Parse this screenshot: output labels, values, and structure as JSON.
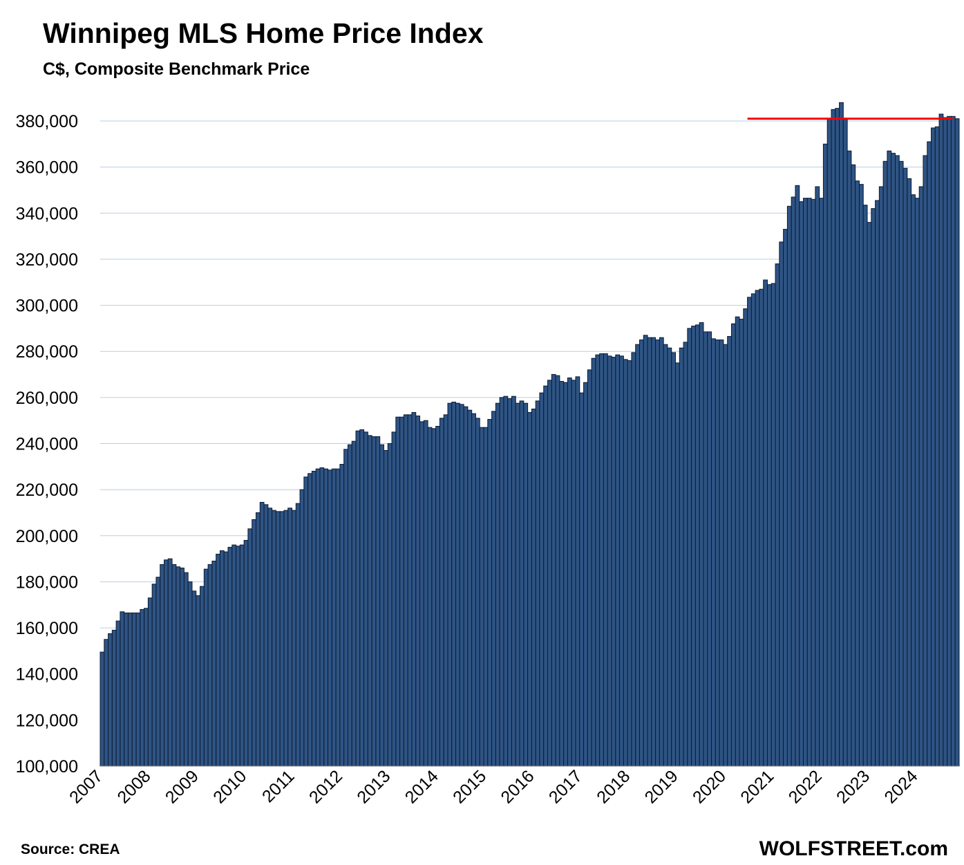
{
  "chart_data": {
    "type": "bar",
    "title": "Winnipeg MLS Home Price Index",
    "subtitle": "C$, Composite Benchmark Price",
    "ylim": [
      100000,
      390000
    ],
    "y_ticks": [
      "100,000",
      "120,000",
      "140,000",
      "160,000",
      "180,000",
      "200,000",
      "220,000",
      "240,000",
      "260,000",
      "280,000",
      "300,000",
      "320,000",
      "340,000",
      "360,000",
      "380,000"
    ],
    "y_tick_values": [
      100000,
      120000,
      140000,
      160000,
      180000,
      200000,
      220000,
      240000,
      260000,
      280000,
      300000,
      320000,
      340000,
      360000,
      380000
    ],
    "x_ticks": [
      "2007",
      "2008",
      "2009",
      "2010",
      "2011",
      "2012",
      "2013",
      "2014",
      "2015",
      "2016",
      "2017",
      "2018",
      "2019",
      "2020",
      "2021",
      "2022",
      "2023",
      "2024"
    ],
    "frequency": "monthly",
    "start": "2007-01",
    "grid": true,
    "bar_color": "#2e5484",
    "reference_line": {
      "value": 381000,
      "color": "#ff0000",
      "from": "2020-07",
      "to": "2024-09"
    },
    "values": [
      149500,
      155000,
      157500,
      159000,
      163000,
      167000,
      166500,
      166500,
      166500,
      166500,
      168000,
      168500,
      173000,
      179000,
      182000,
      187500,
      189500,
      190000,
      187500,
      186500,
      186000,
      184000,
      180000,
      176000,
      174000,
      178000,
      185500,
      187500,
      189000,
      192000,
      193500,
      193000,
      195000,
      196000,
      195500,
      196000,
      198000,
      203000,
      207000,
      210000,
      214500,
      213500,
      212000,
      211000,
      210500,
      210500,
      211000,
      212000,
      211000,
      214000,
      220000,
      225500,
      227000,
      228000,
      229000,
      229500,
      229000,
      228500,
      229000,
      229000,
      231000,
      237500,
      239500,
      241000,
      245500,
      246000,
      245000,
      243500,
      243000,
      243000,
      239500,
      237000,
      240000,
      245000,
      251500,
      251500,
      252500,
      252500,
      253500,
      252000,
      249500,
      250000,
      247000,
      246500,
      247500,
      251000,
      252500,
      257500,
      258000,
      257500,
      257000,
      256000,
      254500,
      253000,
      251000,
      247000,
      247000,
      250500,
      254000,
      257500,
      260000,
      260500,
      259500,
      260500,
      257500,
      258500,
      257500,
      253500,
      255000,
      258500,
      262000,
      265000,
      267500,
      270000,
      269500,
      267000,
      266500,
      268500,
      267500,
      269000,
      262000,
      266500,
      272000,
      277000,
      278500,
      279000,
      279000,
      278000,
      277500,
      278500,
      278000,
      276500,
      276000,
      279500,
      283000,
      285000,
      287000,
      286000,
      286000,
      285000,
      286000,
      283000,
      281500,
      279500,
      275000,
      281500,
      284000,
      290000,
      291000,
      291500,
      292500,
      288500,
      288500,
      285500,
      285000,
      285000,
      283000,
      286500,
      292000,
      295000,
      294000,
      298500,
      303500,
      305000,
      306500,
      307000,
      311000,
      309000,
      309500,
      318000,
      327500,
      333000,
      343000,
      347000,
      352000,
      345000,
      346500,
      346500,
      346000,
      351500,
      346500,
      370000,
      381000,
      385000,
      385500,
      388000,
      381000,
      367000,
      361000,
      354000,
      352500,
      343500,
      336000,
      342000,
      345500,
      351500,
      362500,
      367000,
      366000,
      365000,
      362500,
      359500,
      355000,
      348000,
      346500,
      351500,
      365000,
      371000,
      377000,
      377500,
      383000,
      381500,
      382000,
      382000,
      381000
    ]
  },
  "footer": {
    "source": "Source: CREA",
    "brand": "WOLFSTREET.com"
  }
}
